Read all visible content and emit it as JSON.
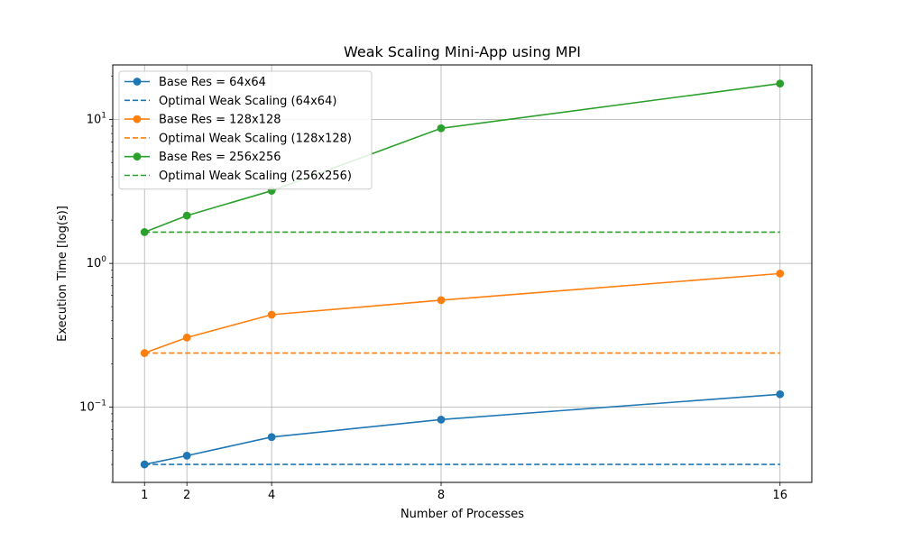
{
  "chart_data": {
    "type": "line",
    "title": "Weak Scaling Mini-App using MPI",
    "xlabel": "Number of Processes",
    "ylabel": "Execution Time [log(s)]",
    "yscale": "log",
    "xlim": [
      0.25,
      16.75
    ],
    "ylim": [
      0.03,
      24
    ],
    "x_ticks": [
      1,
      2,
      4,
      8,
      16
    ],
    "y_ticks": [
      {
        "value": 0.1,
        "base": "10",
        "exp": "−1"
      },
      {
        "value": 1,
        "base": "10",
        "exp": "0"
      },
      {
        "value": 10,
        "base": "10",
        "exp": "1"
      }
    ],
    "grid": true,
    "legend_position": "upper-left",
    "x": [
      1,
      2,
      4,
      8,
      16
    ],
    "series": [
      {
        "name": "Base Res = 64x64",
        "color": "#1f77b4",
        "style": "solid-marker",
        "values": [
          0.04,
          0.046,
          0.062,
          0.082,
          0.123
        ]
      },
      {
        "name": "Optimal Weak Scaling (64x64)",
        "color": "#1f77b4",
        "style": "dashed",
        "values": [
          0.04,
          0.04,
          0.04,
          0.04,
          0.04
        ]
      },
      {
        "name": "Base Res = 128x128",
        "color": "#ff7f0e",
        "style": "solid-marker",
        "values": [
          0.238,
          0.305,
          0.44,
          0.555,
          0.85
        ]
      },
      {
        "name": "Optimal Weak Scaling (128x128)",
        "color": "#ff7f0e",
        "style": "dashed",
        "values": [
          0.238,
          0.238,
          0.238,
          0.238,
          0.238
        ]
      },
      {
        "name": "Base Res = 256x256",
        "color": "#2ca02c",
        "style": "solid-marker",
        "values": [
          1.65,
          2.15,
          3.2,
          8.7,
          17.8
        ]
      },
      {
        "name": "Optimal Weak Scaling (256x256)",
        "color": "#2ca02c",
        "style": "dashed",
        "values": [
          1.65,
          1.65,
          1.65,
          1.65,
          1.65
        ]
      }
    ]
  }
}
